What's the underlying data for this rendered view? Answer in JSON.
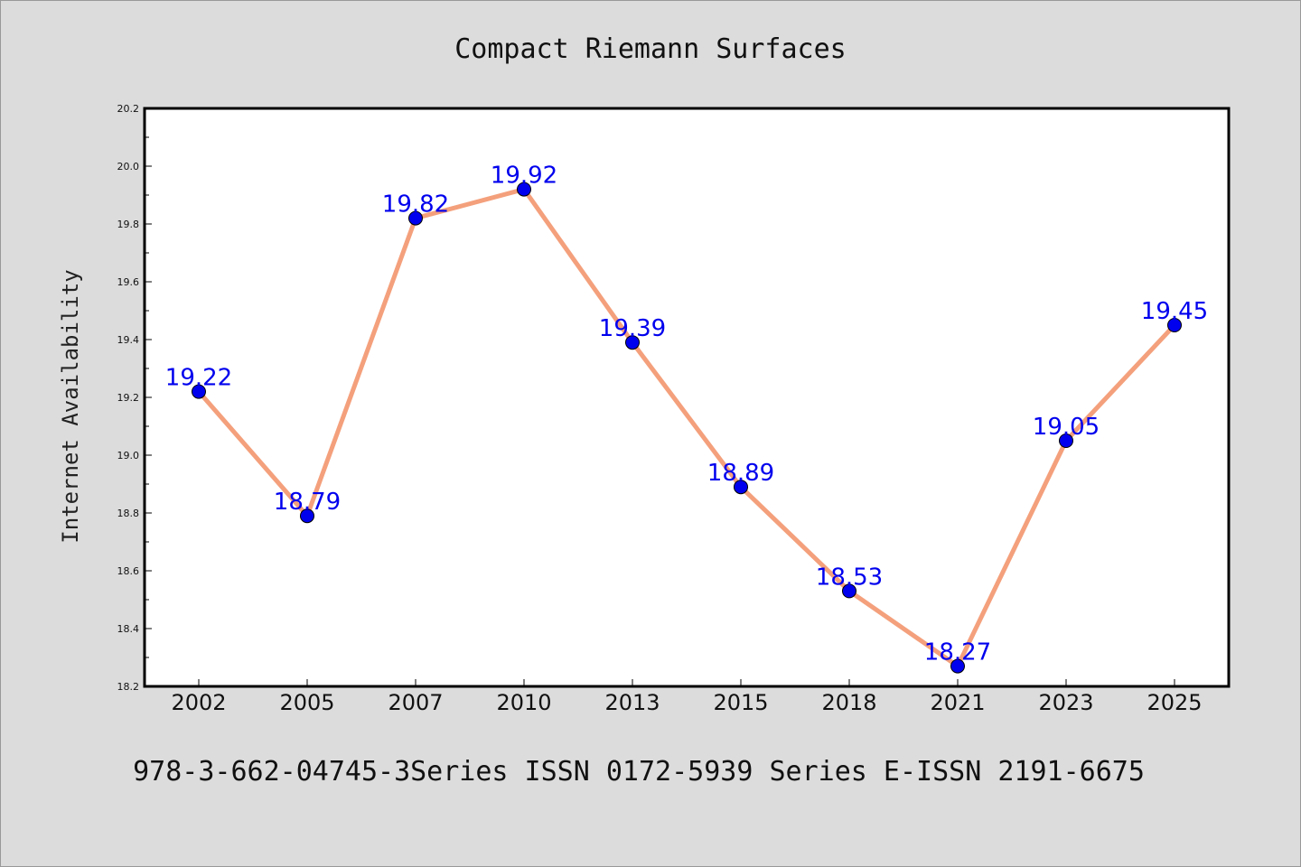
{
  "chart_data": {
    "type": "line",
    "title": "Compact Riemann Surfaces",
    "ylabel": "Internet Availability",
    "xlabel": "",
    "categories": [
      "2002",
      "2005",
      "2007",
      "2010",
      "2013",
      "2015",
      "2018",
      "2021",
      "2023",
      "2025"
    ],
    "series": [
      {
        "values": [
          19.22,
          18.79,
          19.82,
          19.92,
          19.39,
          18.89,
          18.53,
          18.27,
          19.05,
          19.45
        ]
      }
    ],
    "data_labels": [
      "19.22",
      "18.79",
      "19.82",
      "19.92",
      "19.39",
      "18.89",
      "18.53",
      "18.27",
      "19.05",
      "19.45"
    ],
    "ylim": [
      18.2,
      20.2
    ],
    "yticks": [
      "18.2",
      "18.4",
      "18.6",
      "18.8",
      "19.0",
      "19.2",
      "19.4",
      "19.6",
      "19.8",
      "20.0",
      "20.2"
    ],
    "grid": false,
    "colors": {
      "line": "#f4a07c",
      "marker": "#0000ee",
      "label": "#0000ee",
      "background": "#dcdcdc",
      "plot_bg": "#ffffff"
    }
  },
  "footer": "978-3-662-04745-3Series ISSN 0172-5939 Series E-ISSN 2191-6675"
}
